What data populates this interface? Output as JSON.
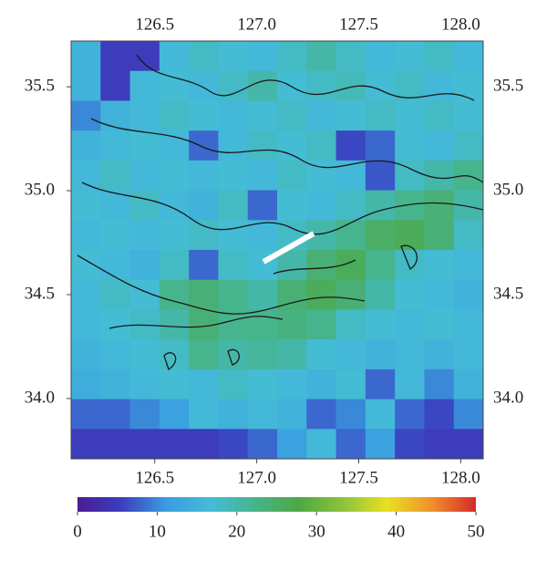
{
  "chart_data": {
    "type": "heatmap",
    "xlim": [
      126.09,
      128.11
    ],
    "ylim": [
      33.71,
      35.72
    ],
    "xticks": [
      126.5,
      {
        "value": 127.0,
        "label": "127.0"
      },
      127.5,
      {
        "value": 128.0,
        "label": "128.0"
      }
    ],
    "yticks": [
      {
        "value": 34.0,
        "label": "34.0"
      },
      34.5,
      {
        "value": 35.0,
        "label": "35.0"
      },
      35.5
    ],
    "z": [
      [
        15,
        5,
        5,
        16,
        18,
        17,
        16,
        18,
        20,
        18,
        16,
        17,
        18,
        16
      ],
      [
        15,
        5,
        16,
        17,
        16,
        18,
        20,
        17,
        18,
        19,
        17,
        18,
        16,
        17
      ],
      [
        10,
        15,
        16,
        18,
        17,
        16,
        17,
        18,
        16,
        17,
        18,
        17,
        18,
        17
      ],
      [
        15,
        16,
        17,
        16,
        8,
        16,
        18,
        17,
        18,
        6,
        8,
        17,
        16,
        18
      ],
      [
        16,
        18,
        16,
        17,
        16,
        17,
        16,
        18,
        17,
        16,
        7,
        18,
        20,
        22
      ],
      [
        17,
        16,
        18,
        16,
        15,
        18,
        8,
        17,
        16,
        18,
        20,
        22,
        24,
        20
      ],
      [
        16,
        17,
        16,
        17,
        18,
        17,
        16,
        18,
        20,
        22,
        25,
        26,
        24,
        18
      ],
      [
        17,
        16,
        15,
        18,
        8,
        18,
        17,
        20,
        24,
        26,
        22,
        18,
        17,
        16
      ],
      [
        16,
        18,
        17,
        22,
        24,
        22,
        20,
        24,
        26,
        24,
        20,
        17,
        16,
        15
      ],
      [
        16,
        17,
        18,
        20,
        24,
        22,
        22,
        23,
        22,
        18,
        17,
        16,
        17,
        16
      ],
      [
        15,
        16,
        17,
        18,
        22,
        20,
        21,
        20,
        17,
        16,
        15,
        16,
        15,
        16
      ],
      [
        14,
        15,
        16,
        17,
        16,
        18,
        17,
        16,
        15,
        17,
        8,
        16,
        10,
        15
      ],
      [
        8,
        8,
        10,
        12,
        16,
        15,
        16,
        15,
        8,
        10,
        16,
        8,
        6,
        10
      ],
      [
        5,
        5,
        5,
        5,
        5,
        6,
        8,
        12,
        16,
        8,
        12,
        6,
        5,
        5
      ]
    ],
    "colorbar": {
      "lim": [
        0,
        50
      ],
      "ticks": [
        0,
        10,
        20,
        30,
        40,
        50
      ],
      "colors": [
        "#4a1c94",
        "#3b3fbf",
        "#3a9ce0",
        "#44bcd8",
        "#46b48a",
        "#4da844",
        "#8cc43c",
        "#e8e020",
        "#f0902a",
        "#d42a2a"
      ]
    }
  }
}
